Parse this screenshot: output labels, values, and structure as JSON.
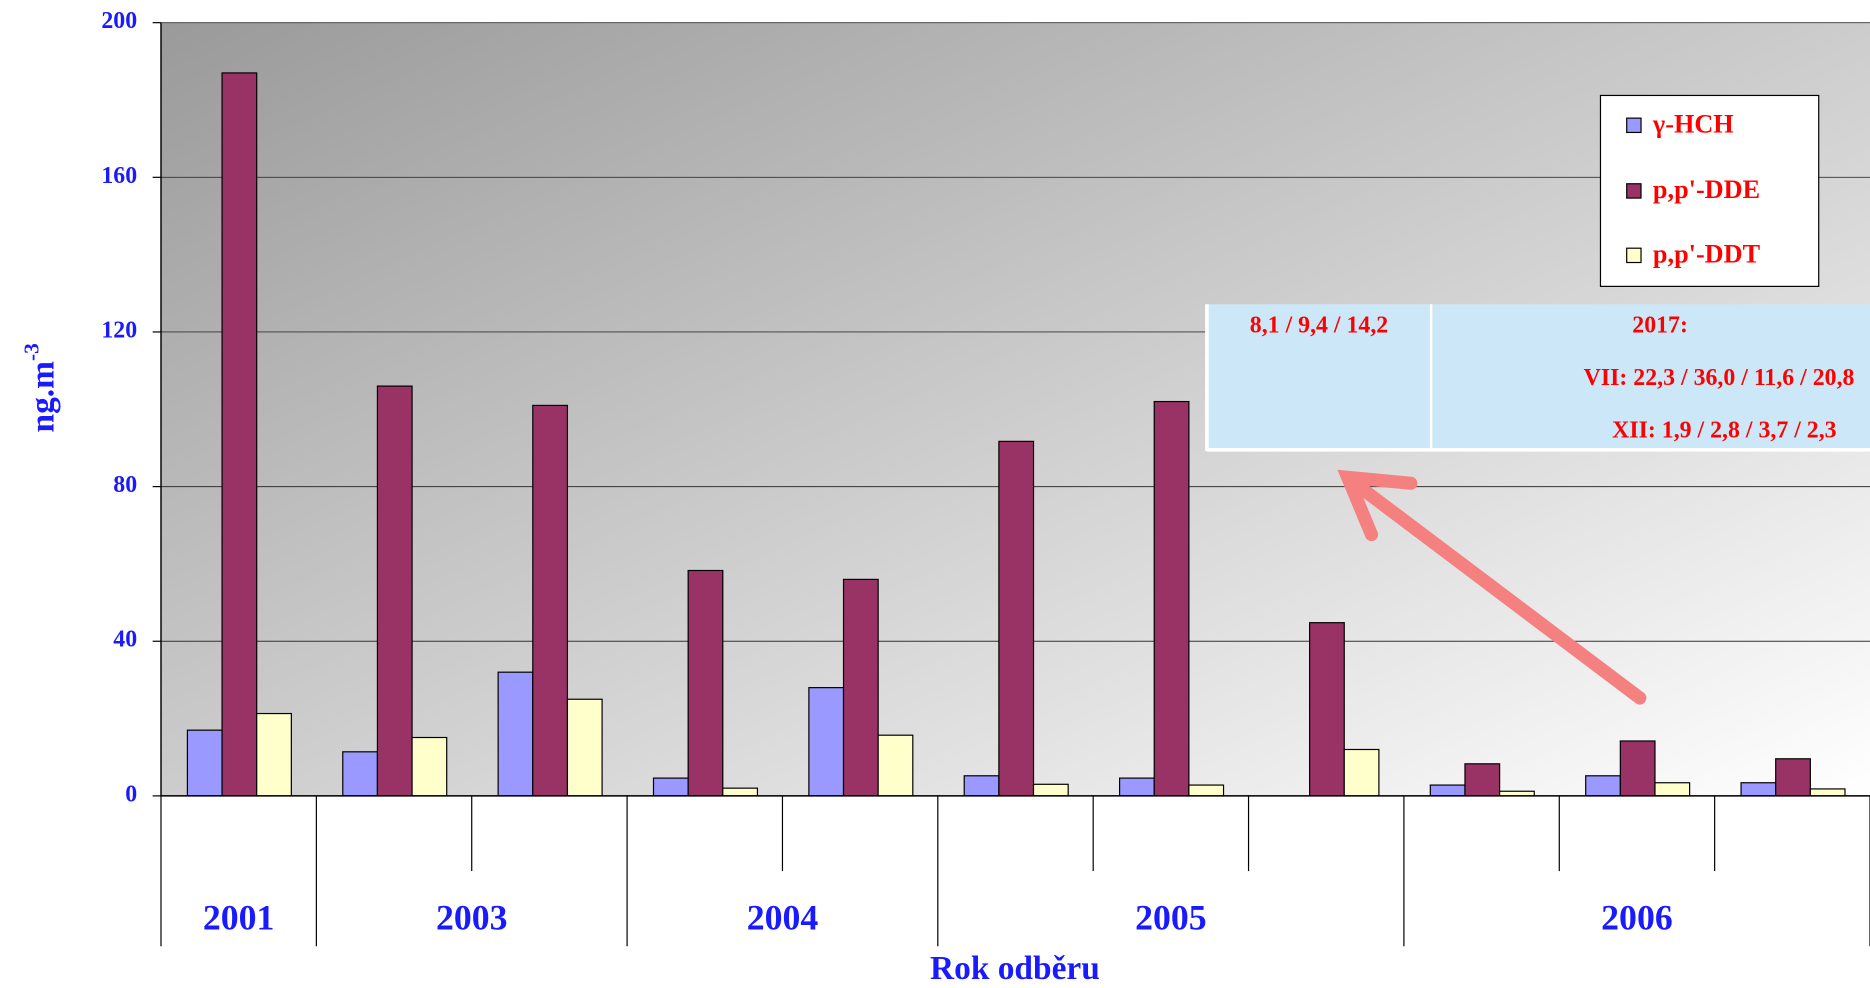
{
  "chart_data": {
    "type": "bar",
    "y_label": {
      "base": "ng.m",
      "superscript": "-3"
    },
    "x_label": "Rok odběru",
    "categories": [
      null,
      null,
      null,
      null,
      null,
      null,
      null,
      null,
      null,
      null,
      null
    ],
    "groups": [
      {
        "label": "2001",
        "span": 1
      },
      {
        "label": "2003",
        "span": 2
      },
      {
        "label": "2004",
        "span": 2
      },
      {
        "label": "2005",
        "span": 3
      },
      {
        "label": "2006",
        "span": 3
      }
    ],
    "series": [
      {
        "name": "γ-HCH",
        "color": "#9999ff",
        "values": [
          17,
          11.4,
          32,
          4.6,
          28,
          5.2,
          4.6,
          null,
          2.8,
          5.2,
          3.4
        ]
      },
      {
        "name": "p,p'-DDE",
        "color": "#993366",
        "values": [
          187,
          106,
          101,
          58.3,
          56,
          91.7,
          102,
          44.8,
          8.3,
          14.2,
          9.6
        ]
      },
      {
        "name": "p,p'-DDT",
        "color": "#ffffcc",
        "values": [
          21.3,
          15.1,
          25,
          2,
          15.7,
          3,
          2.8,
          12,
          1.2,
          3.4,
          1.8
        ]
      }
    ],
    "ylim": [
      0,
      200
    ],
    "yticks": [
      0,
      40,
      80,
      120,
      160,
      200
    ],
    "grid": true,
    "legend": "top-right",
    "annotation": {
      "left": "8,1 / 9,4 / 14,2",
      "right": [
        "2017:",
        "VII: 22,3 / 36,0 / 11,6 / 20,8",
        "XII: 1,9 / 2,8 / 3,7 / 2,3"
      ]
    }
  }
}
